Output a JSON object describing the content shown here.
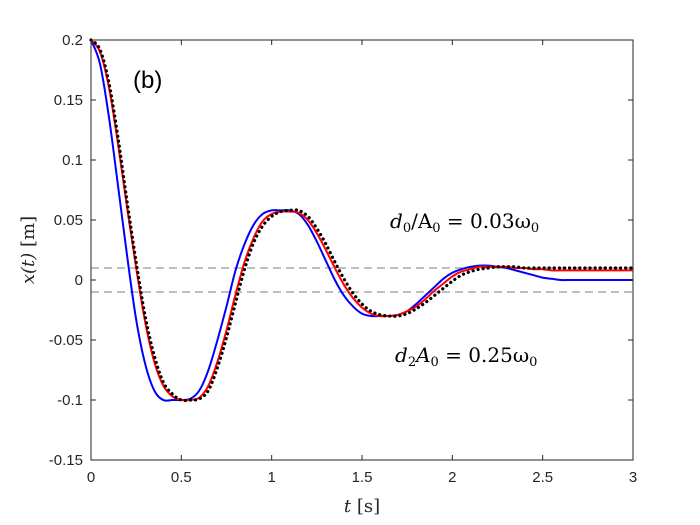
{
  "chart_data": {
    "type": "line",
    "panel_label": "(b)",
    "xlabel": "t [s]",
    "xlabel_var": "t",
    "xlabel_unit": "[s]",
    "ylabel": "x(t) [m]",
    "ylabel_var": "x(t)",
    "ylabel_unit": "[m]",
    "xlim": [
      0,
      3
    ],
    "ylim": [
      -0.15,
      0.2
    ],
    "x_ticks": [
      0,
      0.5,
      1,
      1.5,
      2,
      2.5,
      3
    ],
    "x_tick_labels": [
      "0",
      "0.5",
      "1",
      "1.5",
      "2",
      "2.5",
      "3"
    ],
    "y_ticks": [
      0.2,
      0.15,
      0.1,
      0.05,
      0,
      -0.05,
      -0.1,
      -0.15
    ],
    "y_tick_labels": [
      "0.2",
      "0.15",
      "0.1",
      "0.05",
      "0",
      "-0.05",
      "-0.1",
      "-0.15"
    ],
    "grid": false,
    "annotations": [
      {
        "id": "top",
        "text": "d0/A0 = 0.03ω0",
        "lhs": "d",
        "lhs_sub": "0",
        "slash": "/A",
        "slash_sub": "0",
        "eq": " = 0.03ω",
        "rhs_sub": "0"
      },
      {
        "id": "bottom",
        "text": "d2A0 = 0.25ω0",
        "lhs": "d",
        "lhs_sub": "2",
        "mid": "A",
        "mid_sub": "0",
        "eq": " = 0.25ω",
        "rhs_sub": "0"
      }
    ],
    "reference_lines": {
      "values": [
        0.01,
        -0.01
      ],
      "color": "#7f7f7f",
      "style": "dashed"
    },
    "series": [
      {
        "name": "blue",
        "color": "#0000ff",
        "style": "solid",
        "x": [
          0,
          0.05,
          0.1,
          0.15,
          0.2,
          0.25,
          0.3,
          0.35,
          0.4,
          0.45,
          0.5,
          0.55,
          0.6,
          0.65,
          0.7,
          0.75,
          0.8,
          0.85,
          0.9,
          0.95,
          1.0,
          1.05,
          1.1,
          1.15,
          1.2,
          1.25,
          1.3,
          1.35,
          1.4,
          1.45,
          1.5,
          1.55,
          1.6,
          1.65,
          1.7,
          1.75,
          1.8,
          1.85,
          1.9,
          1.95,
          2.0,
          2.05,
          2.1,
          2.15,
          2.2,
          2.25,
          2.3,
          2.35,
          2.4,
          2.45,
          2.5,
          2.55,
          2.6,
          2.65,
          2.7,
          2.75,
          2.8,
          2.85,
          2.9,
          2.95,
          3.0
        ],
        "y": [
          0.2,
          0.18,
          0.135,
          0.078,
          0.02,
          -0.033,
          -0.07,
          -0.092,
          -0.1,
          -0.1,
          -0.1,
          -0.099,
          -0.092,
          -0.075,
          -0.05,
          -0.022,
          0.008,
          0.03,
          0.046,
          0.055,
          0.058,
          0.058,
          0.058,
          0.055,
          0.046,
          0.032,
          0.016,
          0.0,
          -0.013,
          -0.022,
          -0.028,
          -0.03,
          -0.03,
          -0.03,
          -0.029,
          -0.026,
          -0.02,
          -0.013,
          -0.006,
          0.001,
          0.006,
          0.009,
          0.011,
          0.012,
          0.012,
          0.011,
          0.01,
          0.008,
          0.006,
          0.004,
          0.002,
          0.001,
          0.0,
          0.0,
          0.0,
          0.0,
          0.0,
          0.0,
          0.0,
          0.0,
          0.0
        ]
      },
      {
        "name": "red",
        "color": "#ff0000",
        "style": "solid",
        "x": [
          0,
          0.05,
          0.1,
          0.15,
          0.2,
          0.25,
          0.3,
          0.35,
          0.4,
          0.45,
          0.5,
          0.55,
          0.6,
          0.65,
          0.7,
          0.75,
          0.8,
          0.85,
          0.9,
          0.95,
          1.0,
          1.05,
          1.1,
          1.15,
          1.2,
          1.25,
          1.3,
          1.35,
          1.4,
          1.45,
          1.5,
          1.55,
          1.6,
          1.65,
          1.7,
          1.75,
          1.8,
          1.85,
          1.9,
          1.95,
          2.0,
          2.05,
          2.1,
          2.15,
          2.2,
          2.25,
          2.3,
          2.35,
          2.4,
          2.45,
          2.5,
          2.55,
          2.6,
          2.65,
          2.7,
          2.75,
          2.8,
          2.85,
          2.9,
          2.95,
          3.0
        ],
        "y": [
          0.2,
          0.19,
          0.16,
          0.113,
          0.06,
          0.01,
          -0.035,
          -0.068,
          -0.088,
          -0.097,
          -0.1,
          -0.1,
          -0.098,
          -0.088,
          -0.068,
          -0.042,
          -0.012,
          0.015,
          0.035,
          0.049,
          0.055,
          0.057,
          0.057,
          0.056,
          0.05,
          0.039,
          0.025,
          0.01,
          -0.004,
          -0.015,
          -0.023,
          -0.028,
          -0.03,
          -0.03,
          -0.029,
          -0.026,
          -0.022,
          -0.016,
          -0.009,
          -0.003,
          0.003,
          0.007,
          0.009,
          0.011,
          0.011,
          0.011,
          0.011,
          0.01,
          0.01,
          0.009,
          0.009,
          0.008,
          0.008,
          0.008,
          0.008,
          0.008,
          0.008,
          0.008,
          0.008,
          0.008,
          0.008
        ]
      },
      {
        "name": "black-dotted",
        "color": "#000000",
        "style": "dotted",
        "x": [
          0,
          0.05,
          0.1,
          0.15,
          0.2,
          0.25,
          0.3,
          0.35,
          0.4,
          0.45,
          0.5,
          0.55,
          0.6,
          0.65,
          0.7,
          0.75,
          0.8,
          0.85,
          0.9,
          0.95,
          1.0,
          1.05,
          1.1,
          1.15,
          1.2,
          1.25,
          1.3,
          1.35,
          1.4,
          1.45,
          1.5,
          1.55,
          1.6,
          1.65,
          1.7,
          1.75,
          1.8,
          1.85,
          1.9,
          1.95,
          2.0,
          2.05,
          2.1,
          2.15,
          2.2,
          2.25,
          2.3,
          2.35,
          2.4,
          2.45,
          2.5,
          2.55,
          2.6,
          2.65,
          2.7,
          2.75,
          2.8,
          2.85,
          2.9,
          2.95,
          3.0
        ],
        "y": [
          0.2,
          0.192,
          0.164,
          0.118,
          0.065,
          0.015,
          -0.03,
          -0.063,
          -0.085,
          -0.095,
          -0.1,
          -0.1,
          -0.099,
          -0.092,
          -0.073,
          -0.048,
          -0.019,
          0.009,
          0.031,
          0.045,
          0.053,
          0.057,
          0.058,
          0.058,
          0.053,
          0.043,
          0.03,
          0.015,
          0.001,
          -0.011,
          -0.02,
          -0.026,
          -0.029,
          -0.03,
          -0.03,
          -0.028,
          -0.024,
          -0.019,
          -0.013,
          -0.007,
          -0.001,
          0.004,
          0.007,
          0.009,
          0.01,
          0.011,
          0.011,
          0.011,
          0.01,
          0.01,
          0.01,
          0.01,
          0.01,
          0.01,
          0.01,
          0.01,
          0.01,
          0.01,
          0.01,
          0.01,
          0.01
        ]
      }
    ]
  }
}
